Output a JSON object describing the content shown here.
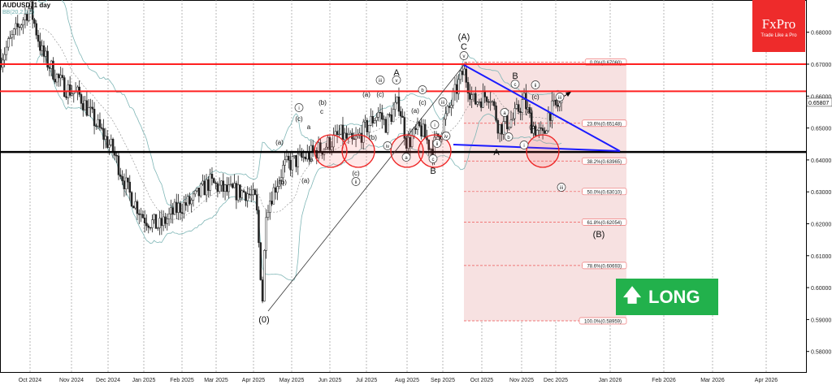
{
  "header": {
    "symbol_title": "AUDUSD, 1 day",
    "indicator": "BB(20,2.0,0)"
  },
  "logo": {
    "brand": "FxPro",
    "tagline": "Trade Like a Pro"
  },
  "signal": {
    "label": "LONG",
    "icon": "arrow-up-icon",
    "color": "#22b14c"
  },
  "colors": {
    "resistance": "#ff2020",
    "support": "#000000",
    "trendline": "#1a1aff",
    "fib_zone": "#f7e1e1",
    "bands": "#7fb6b6"
  },
  "chart_data": {
    "type": "candlestick",
    "title": "AUDUSD, 1 day",
    "xlabel": "",
    "ylabel": "",
    "x_ticks": [
      "Oct 2024",
      "Nov 2024",
      "Dec 2024",
      "Jan 2025",
      "Feb 2025",
      "Mar 2025",
      "Apr 2025",
      "May 2025",
      "Jun 2025",
      "Jul 2025",
      "Aug 2025",
      "Sep 2025",
      "Oct 2025",
      "Nov 2025",
      "Dec 2025",
      "Jan 2026",
      "Feb 2026",
      "Mar 2026",
      "Apr 2026"
    ],
    "y_ticks": [
      "0.68000",
      "0.67000",
      "0.66000",
      "0.65000",
      "0.64000",
      "0.63000",
      "0.62000",
      "0.61000",
      "0.60000",
      "0.59000",
      "0.58000"
    ],
    "ylim": [
      0.575,
      0.692
    ],
    "grid": true,
    "current_price": "0.65807",
    "approx_closes": [
      [
        "2024-09-09",
        0.672
      ],
      [
        "2024-09-20",
        0.68
      ],
      [
        "2024-10-01",
        0.688
      ],
      [
        "2024-10-10",
        0.673
      ],
      [
        "2024-10-25",
        0.663
      ],
      [
        "2024-11-08",
        0.66
      ],
      [
        "2024-11-20",
        0.652
      ],
      [
        "2024-12-05",
        0.643
      ],
      [
        "2024-12-18",
        0.63
      ],
      [
        "2025-01-01",
        0.622
      ],
      [
        "2025-01-13",
        0.619
      ],
      [
        "2025-01-28",
        0.625
      ],
      [
        "2025-02-10",
        0.627
      ],
      [
        "2025-02-25",
        0.633
      ],
      [
        "2025-03-10",
        0.63
      ],
      [
        "2025-03-25",
        0.63
      ],
      [
        "2025-04-03",
        0.627
      ],
      [
        "2025-04-08",
        0.596
      ],
      [
        "2025-04-11",
        0.625
      ],
      [
        "2025-04-25",
        0.638
      ],
      [
        "2025-05-12",
        0.641
      ],
      [
        "2025-05-26",
        0.644
      ],
      [
        "2025-06-10",
        0.648
      ],
      [
        "2025-06-20",
        0.645
      ],
      [
        "2025-07-10",
        0.655
      ],
      [
        "2025-07-15",
        0.651
      ],
      [
        "2025-07-25",
        0.658
      ],
      [
        "2025-08-01",
        0.645
      ],
      [
        "2025-08-12",
        0.65
      ],
      [
        "2025-08-22",
        0.643
      ],
      [
        "2025-09-05",
        0.655
      ],
      [
        "2025-09-17",
        0.668
      ],
      [
        "2025-09-25",
        0.658
      ],
      [
        "2025-10-07",
        0.661
      ],
      [
        "2025-10-14",
        0.65
      ],
      [
        "2025-10-25",
        0.653
      ],
      [
        "2025-11-03",
        0.659
      ],
      [
        "2025-11-10",
        0.651
      ],
      [
        "2025-11-20",
        0.647
      ],
      [
        "2025-11-25",
        0.655
      ],
      [
        "2025-12-05",
        0.658
      ]
    ],
    "horizontal_levels": {
      "resistance": [
        0.67,
        0.6615
      ],
      "support": [
        0.6425
      ]
    },
    "fibonacci": [
      {
        "label": "0.0%(0.67060)",
        "price": 0.6706
      },
      {
        "label": "23.6%(0.65148)",
        "price": 0.65148
      },
      {
        "label": "38.2%(0.63965)",
        "price": 0.63965
      },
      {
        "label": "50.0%(0.63010)",
        "price": 0.6301
      },
      {
        "label": "61.8%(0.62054)",
        "price": 0.62054
      },
      {
        "label": "78.6%(0.60693)",
        "price": 0.60693
      },
      {
        "label": "100.0%(0.58959)",
        "price": 0.58959
      }
    ],
    "wave_labels": [
      "(A)",
      "C",
      "v",
      "A",
      "v",
      "iii",
      "(a)",
      "(c)",
      "b",
      "(c)",
      "(a)",
      "iii",
      "i",
      "iv",
      "ii",
      "c",
      "B",
      "a",
      "iv",
      "(b)",
      "(b)",
      "c",
      "i",
      "(c)",
      "a",
      "(a)",
      "(b)",
      "(a)",
      "b",
      "(c)",
      "ii",
      "(0)",
      "B",
      "c",
      "ii",
      "(c)",
      "(a)",
      "a",
      "(b)",
      "b",
      "A",
      "i",
      "iii",
      "(B)",
      "iii"
    ]
  }
}
